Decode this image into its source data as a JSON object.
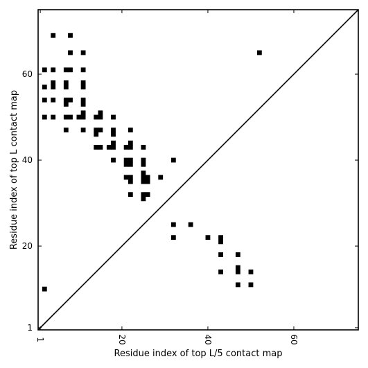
{
  "chart_data": {
    "type": "scatter",
    "title": "",
    "xlabel": "Residue index of top L/5 contact map",
    "ylabel": "Residue index of top L contact map",
    "xlim": [
      0.5,
      75
    ],
    "ylim": [
      0.5,
      75
    ],
    "xticks": [
      1,
      20,
      40,
      60
    ],
    "yticks": [
      1,
      20,
      40,
      60
    ],
    "xtick_labels": [
      "1",
      "20",
      "40",
      "60"
    ],
    "ytick_labels": [
      "1",
      "20",
      "40",
      "60"
    ],
    "grid": false,
    "diagonal": true,
    "marker": "square",
    "color": "#000000",
    "points": [
      [
        4,
        69
      ],
      [
        8,
        69
      ],
      [
        8,
        65
      ],
      [
        11,
        65
      ],
      [
        52,
        65
      ],
      [
        2,
        61
      ],
      [
        4,
        61
      ],
      [
        7,
        61
      ],
      [
        8,
        61
      ],
      [
        11,
        61
      ],
      [
        2,
        57
      ],
      [
        4,
        58
      ],
      [
        4,
        57
      ],
      [
        7,
        58
      ],
      [
        7,
        57
      ],
      [
        11,
        58
      ],
      [
        11,
        57
      ],
      [
        2,
        54
      ],
      [
        4,
        54
      ],
      [
        7,
        54
      ],
      [
        7,
        53
      ],
      [
        8,
        54
      ],
      [
        11,
        54
      ],
      [
        11,
        53
      ],
      [
        2,
        50
      ],
      [
        4,
        50
      ],
      [
        7,
        50
      ],
      [
        8,
        50
      ],
      [
        10,
        50
      ],
      [
        11,
        51
      ],
      [
        11,
        50
      ],
      [
        15,
        51
      ],
      [
        15,
        50
      ],
      [
        14,
        50
      ],
      [
        18,
        50
      ],
      [
        7,
        47
      ],
      [
        11,
        47
      ],
      [
        14,
        47
      ],
      [
        14,
        46
      ],
      [
        15,
        47
      ],
      [
        18,
        47
      ],
      [
        18,
        46
      ],
      [
        22,
        47
      ],
      [
        14,
        43
      ],
      [
        15,
        43
      ],
      [
        17,
        43
      ],
      [
        18,
        43
      ],
      [
        18,
        44
      ],
      [
        21,
        43
      ],
      [
        22,
        43
      ],
      [
        22,
        44
      ],
      [
        25,
        43
      ],
      [
        18,
        40
      ],
      [
        21,
        40
      ],
      [
        21,
        39
      ],
      [
        22,
        40
      ],
      [
        22,
        39
      ],
      [
        25,
        40
      ],
      [
        25,
        39
      ],
      [
        32,
        40
      ],
      [
        21,
        36
      ],
      [
        22,
        36
      ],
      [
        22,
        35
      ],
      [
        25,
        37
      ],
      [
        25,
        36
      ],
      [
        25,
        35
      ],
      [
        26,
        36
      ],
      [
        26,
        35
      ],
      [
        29,
        36
      ],
      [
        22,
        32
      ],
      [
        25,
        32
      ],
      [
        25,
        31
      ],
      [
        26,
        32
      ],
      [
        32,
        25
      ],
      [
        36,
        25
      ],
      [
        32,
        22
      ],
      [
        40,
        22
      ],
      [
        43,
        22
      ],
      [
        43,
        21
      ],
      [
        43,
        18
      ],
      [
        47,
        18
      ],
      [
        43,
        14
      ],
      [
        47,
        15
      ],
      [
        47,
        14
      ],
      [
        50,
        14
      ],
      [
        47,
        11
      ],
      [
        50,
        11
      ],
      [
        2,
        10
      ]
    ]
  }
}
